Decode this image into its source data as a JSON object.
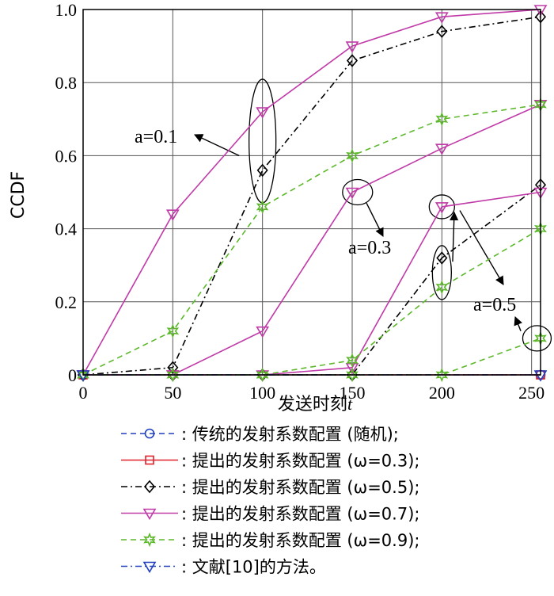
{
  "chart_data": {
    "type": "line",
    "xlabel": "发送时刻t",
    "ylabel": "CCDF",
    "xlim": [
      0,
      255
    ],
    "ylim": [
      0,
      1.0
    ],
    "x_ticks": [
      "0",
      "50",
      "100",
      "150",
      "200",
      "250"
    ],
    "y_ticks": [
      "0",
      "0.2",
      "0.4",
      "0.6",
      "0.8",
      "1.0"
    ],
    "grid": true,
    "annotations": [
      "a=0.1",
      "a=0.3",
      "a=0.5"
    ],
    "series": [
      {
        "name": ": 传统的发射系数配置 (随机);",
        "color": "#1f3fbf",
        "marker": "circle",
        "dash": "dash",
        "x": [
          0,
          255
        ],
        "y": [
          0,
          0
        ]
      },
      {
        "name": ": 提出的发射系数配置 (ω=0.3);",
        "color": "#e0202a",
        "marker": "square",
        "dash": "solid",
        "x": [
          0,
          255
        ],
        "y": [
          0,
          0
        ]
      },
      {
        "name": ": 提出的发射系数配置 (ω=0.5);",
        "color": "#000000",
        "marker": "diamond",
        "dash": "dashdot",
        "groups": [
          {
            "x": [
              0,
              50,
              100,
              150,
              200,
              255
            ],
            "y": [
              0,
              0.02,
              0.56,
              0.86,
              0.94,
              0.98
            ]
          },
          {
            "x": [
              0,
              50,
              100,
              150,
              200,
              255
            ],
            "y": [
              0,
              0,
              0,
              0,
              0.32,
              0.52
            ]
          }
        ]
      },
      {
        "name": ": 提出的发射系数配置 (ω=0.7);",
        "color": "#c03aa8",
        "marker": "triangle-down",
        "dash": "solid",
        "groups": [
          {
            "x": [
              0,
              50,
              100,
              150,
              200,
              255
            ],
            "y": [
              0,
              0.44,
              0.72,
              0.9,
              0.98,
              1.0
            ]
          },
          {
            "x": [
              0,
              50,
              100,
              150,
              200,
              255
            ],
            "y": [
              0,
              0,
              0.12,
              0.5,
              0.62,
              0.74
            ]
          },
          {
            "x": [
              0,
              50,
              100,
              150,
              200,
              255
            ],
            "y": [
              0,
              0,
              0,
              0.02,
              0.46,
              0.5
            ]
          }
        ]
      },
      {
        "name": ": 提出的发射系数配置 (ω=0.9);",
        "color": "#5cb82a",
        "marker": "star",
        "dash": "dash",
        "groups": [
          {
            "x": [
              0,
              50,
              100,
              150,
              200,
              255
            ],
            "y": [
              0,
              0.12,
              0.46,
              0.6,
              0.7,
              0.74
            ]
          },
          {
            "x": [
              0,
              50,
              100,
              150,
              200,
              255
            ],
            "y": [
              0,
              0,
              0,
              0.04,
              0.24,
              0.4
            ]
          },
          {
            "x": [
              0,
              50,
              100,
              150,
              200,
              255
            ],
            "y": [
              0,
              0,
              0,
              0,
              0,
              0.1
            ]
          }
        ]
      },
      {
        "name": ": 文献[10]的方法。",
        "color": "#1f3fbf",
        "marker": "triangle-down",
        "dash": "dashdot",
        "x": [
          0,
          255
        ],
        "y": [
          0,
          0
        ]
      }
    ]
  }
}
